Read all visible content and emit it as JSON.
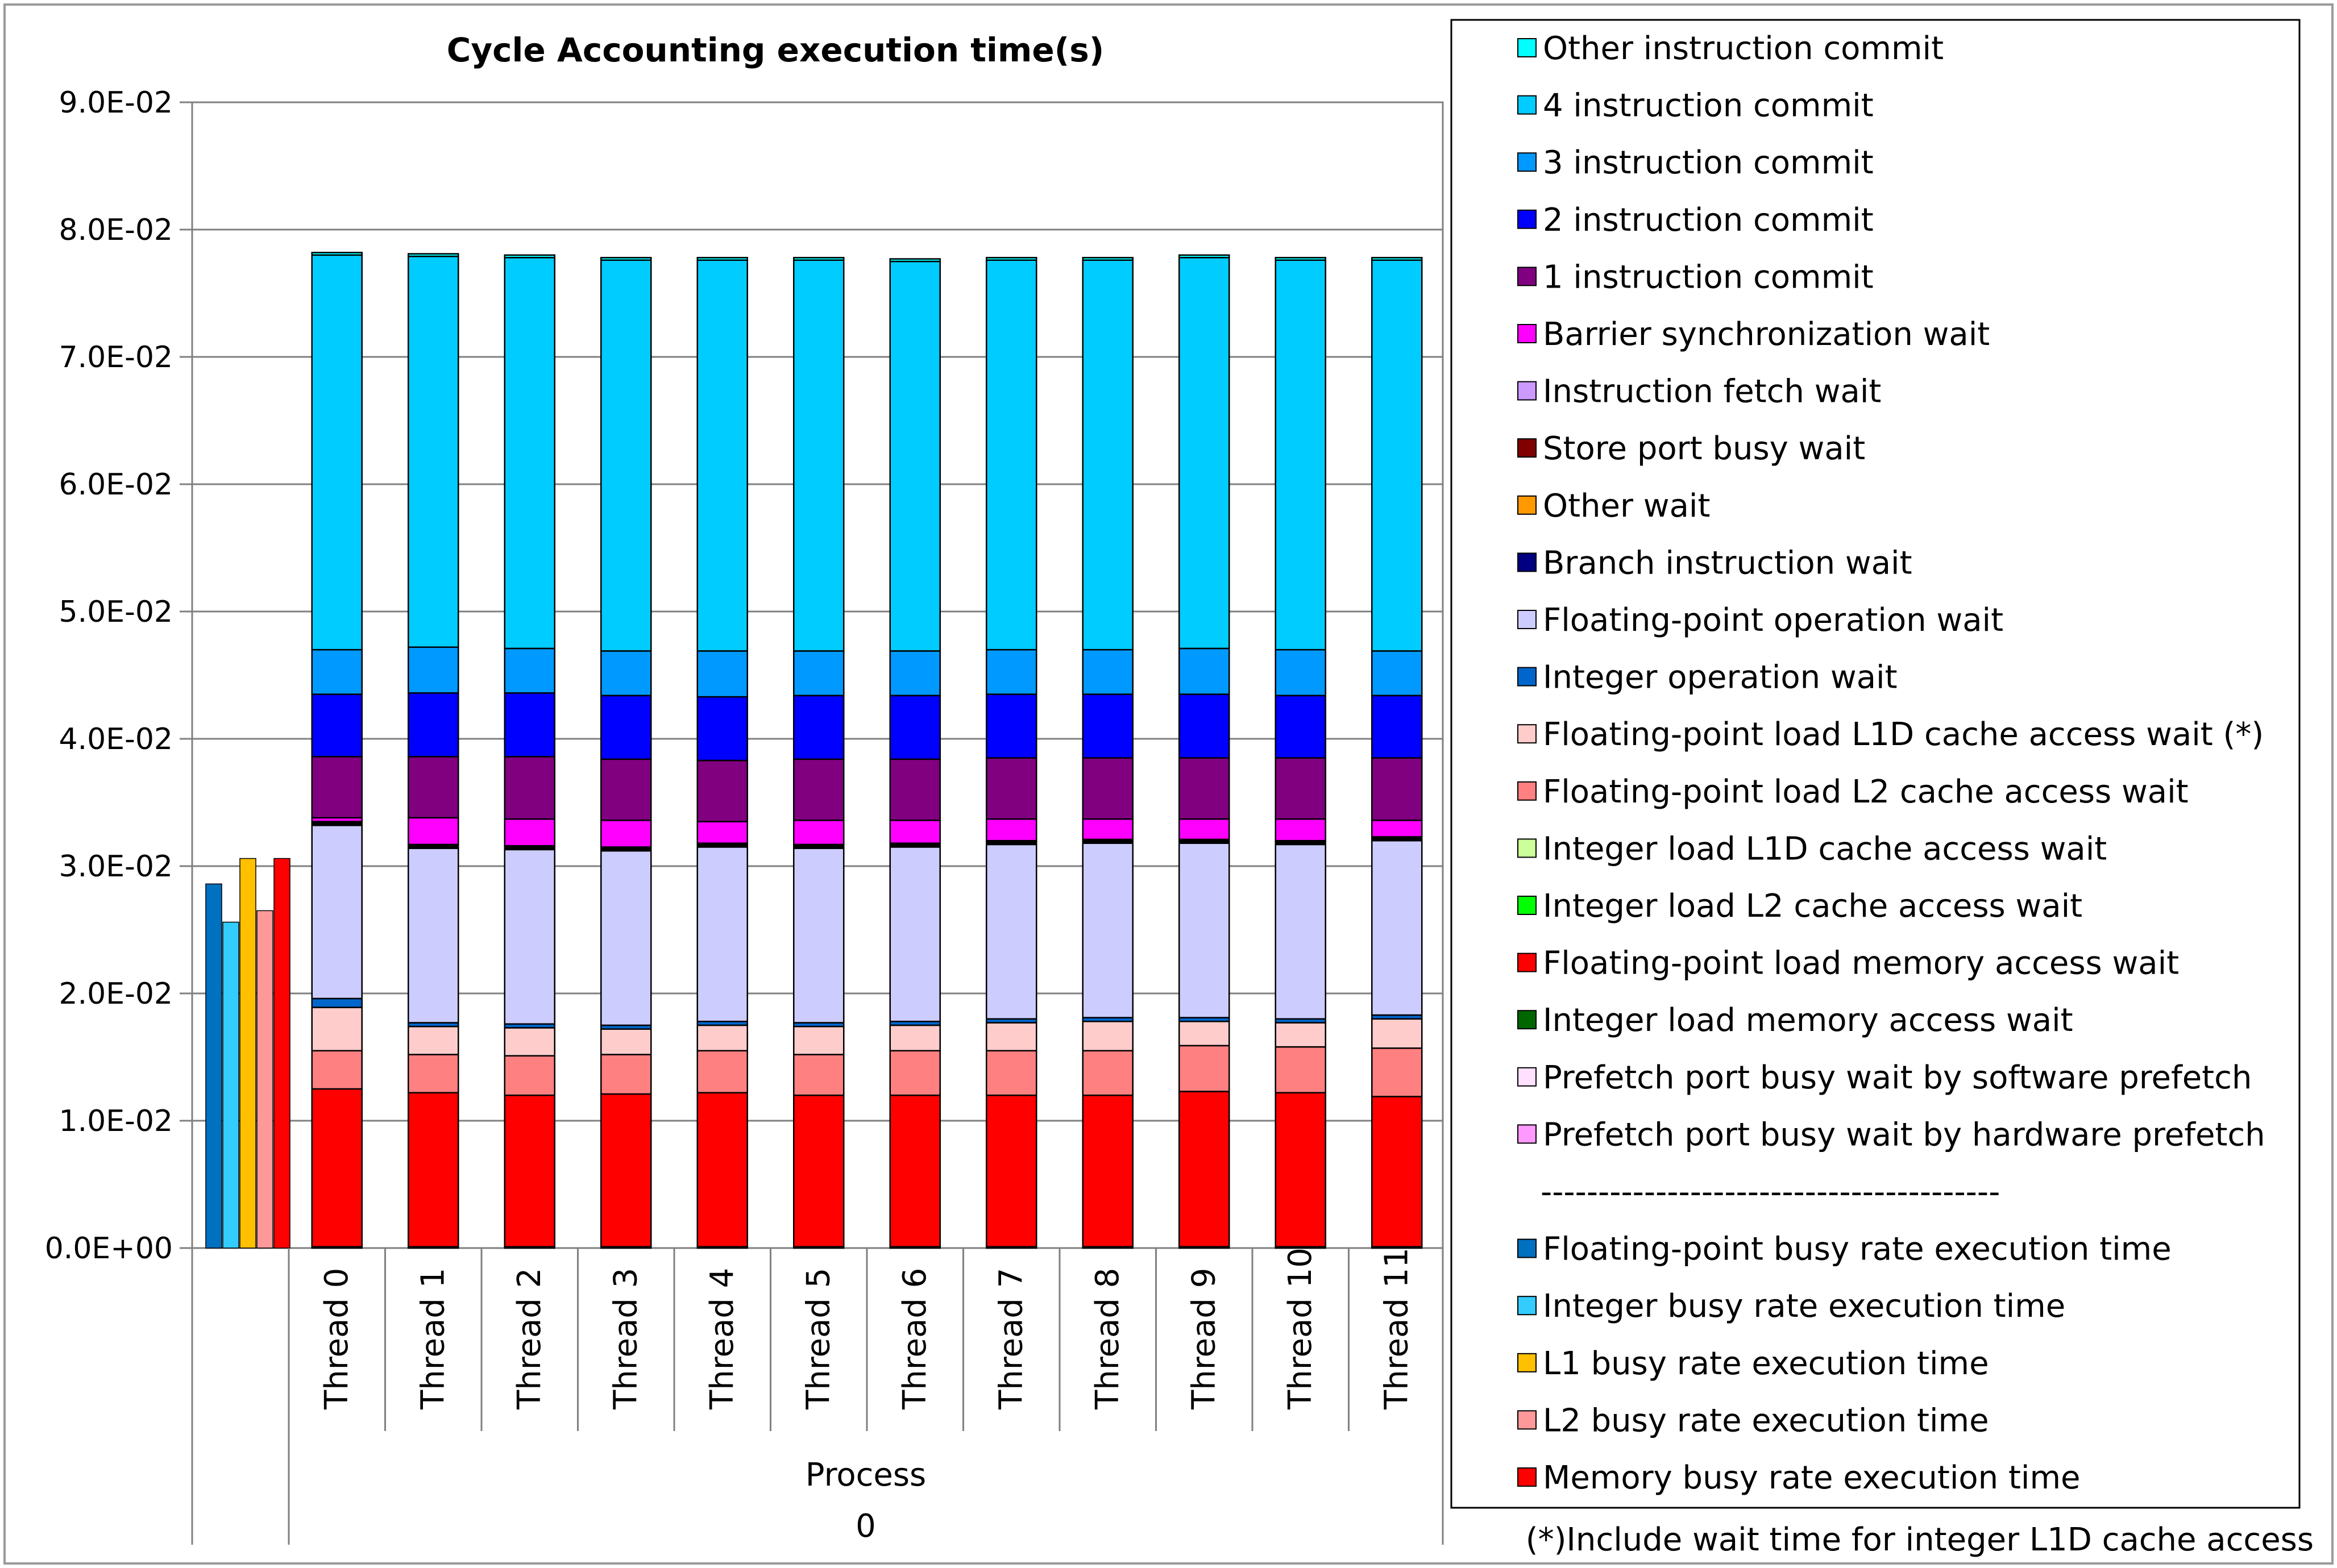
{
  "chart_data": {
    "type": "bar",
    "stacked": true,
    "title": "Cycle Accounting execution time(s)",
    "ylim": [
      0,
      0.09
    ],
    "yticks": [
      "0.0E+00",
      "1.0E-02",
      "2.0E-02",
      "3.0E-02",
      "4.0E-02",
      "5.0E-02",
      "6.0E-02",
      "7.0E-02",
      "8.0E-02",
      "9.0E-02"
    ],
    "grid": "horizontal",
    "legend_position": "right",
    "categories": [
      "Thread 0",
      "Thread 1",
      "Thread 2",
      "Thread 3",
      "Thread 4",
      "Thread 5",
      "Thread 6",
      "Thread 7",
      "Thread 8",
      "Thread 9",
      "Thread 10",
      "Thread 11"
    ],
    "group_labels": [
      "Process",
      "0"
    ],
    "footnote": "(*)Include wait time for integer L1D cache access",
    "legend_separator": "----------------------------------------",
    "series": [
      {
        "name": "Other instruction commit",
        "color": "#00FFFF",
        "values": [
          0.0002,
          0.0002,
          0.0002,
          0.0002,
          0.0002,
          0.0002,
          0.0002,
          0.0002,
          0.0002,
          0.0002,
          0.0002,
          0.0002
        ]
      },
      {
        "name": "4 instruction commit",
        "color": "#00CCFF",
        "values": [
          0.031,
          0.0307,
          0.0307,
          0.0307,
          0.0307,
          0.0307,
          0.0306,
          0.0306,
          0.0306,
          0.0307,
          0.0306,
          0.0307
        ]
      },
      {
        "name": "3 instruction commit",
        "color": "#0099FF",
        "values": [
          0.0035,
          0.0036,
          0.0035,
          0.0035,
          0.0036,
          0.0035,
          0.0035,
          0.0035,
          0.0035,
          0.0036,
          0.0036,
          0.0035
        ]
      },
      {
        "name": "2 instruction commit",
        "color": "#0000FF",
        "values": [
          0.0049,
          0.005,
          0.005,
          0.005,
          0.005,
          0.005,
          0.005,
          0.005,
          0.005,
          0.005,
          0.0049,
          0.0049
        ]
      },
      {
        "name": "1 instruction commit",
        "color": "#800080",
        "values": [
          0.0048,
          0.0048,
          0.0049,
          0.0048,
          0.0048,
          0.0048,
          0.0048,
          0.0048,
          0.0048,
          0.0048,
          0.0048,
          0.0049
        ]
      },
      {
        "name": "Barrier synchronization wait",
        "color": "#FF00FF",
        "values": [
          0.0003,
          0.0021,
          0.0021,
          0.0021,
          0.0017,
          0.0019,
          0.0018,
          0.0017,
          0.0016,
          0.0016,
          0.0017,
          0.0013
        ]
      },
      {
        "name": "Instruction fetch wait",
        "color": "#CC99FF",
        "values": [
          0.0001,
          0.0001,
          0.0001,
          0.0001,
          0.0001,
          0.0001,
          0.0001,
          0.0001,
          0.0001,
          0.0001,
          0.0001,
          0.0001
        ]
      },
      {
        "name": "Store port busy wait",
        "color": "#800000",
        "values": [
          0.0001,
          0.0001,
          0.0001,
          0.0001,
          0.0001,
          0.0001,
          0.0001,
          0.0001,
          0.0001,
          0.0001,
          0.0001,
          0.0001
        ]
      },
      {
        "name": "Other wait",
        "color": "#FF9900",
        "values": [
          0,
          0,
          0,
          0,
          0,
          0,
          0,
          0,
          0,
          0,
          0,
          0
        ]
      },
      {
        "name": "Branch instruction wait",
        "color": "#000080",
        "values": [
          0.0001,
          0.0001,
          0.0001,
          0.0001,
          0.0001,
          0.0001,
          0.0001,
          0.0001,
          0.0001,
          0.0001,
          0.0001,
          0.0001
        ]
      },
      {
        "name": "Floating-point operation wait",
        "color": "#CCCCFF",
        "values": [
          0.0136,
          0.0137,
          0.0137,
          0.0137,
          0.0137,
          0.0137,
          0.0137,
          0.0137,
          0.0137,
          0.0137,
          0.0137,
          0.0137
        ]
      },
      {
        "name": "Integer operation wait",
        "color": "#0066CC",
        "values": [
          0.0007,
          0.0003,
          0.0003,
          0.0003,
          0.0003,
          0.0003,
          0.0003,
          0.0003,
          0.0003,
          0.0003,
          0.0003,
          0.0003
        ]
      },
      {
        "name": "Floating-point load L1D cache access wait (*)",
        "color": "#FFCCCC",
        "values": [
          0.0034,
          0.0022,
          0.0022,
          0.002,
          0.002,
          0.0022,
          0.002,
          0.0022,
          0.0023,
          0.0019,
          0.0019,
          0.0023
        ]
      },
      {
        "name": "Floating-point load L2 cache access wait",
        "color": "#FF8080",
        "values": [
          0.003,
          0.003,
          0.0031,
          0.0031,
          0.0033,
          0.0032,
          0.0035,
          0.0035,
          0.0035,
          0.0036,
          0.0036,
          0.0038
        ]
      },
      {
        "name": "Integer load L1D cache access wait",
        "color": "#CCFF99",
        "values": [
          0,
          0,
          0,
          0,
          0,
          0,
          0,
          0,
          0,
          0,
          0,
          0
        ]
      },
      {
        "name": "Integer load L2 cache access wait",
        "color": "#00FF00",
        "values": [
          0,
          0,
          0,
          0,
          0,
          0,
          0,
          0,
          0,
          0,
          0,
          0
        ]
      },
      {
        "name": "Floating-point load memory access wait",
        "color": "#FF0000",
        "values": [
          0.0124,
          0.0121,
          0.0119,
          0.012,
          0.0121,
          0.0119,
          0.0119,
          0.0119,
          0.0119,
          0.0122,
          0.0121,
          0.0118
        ]
      },
      {
        "name": "Integer load memory access wait",
        "color": "#006600",
        "values": [
          0,
          0,
          0,
          0,
          0,
          0,
          0,
          0,
          0,
          0,
          0,
          0
        ]
      },
      {
        "name": "Prefetch port busy wait by software prefetch",
        "color": "#FFE0FF",
        "values": [
          0,
          0,
          0,
          0,
          0,
          0,
          0,
          0,
          0,
          0,
          0,
          0
        ]
      },
      {
        "name": "Prefetch port busy wait by hardware prefetch",
        "color": "#FF99FF",
        "values": [
          0.0001,
          0.0001,
          0.0001,
          0.0001,
          0.0001,
          0.0001,
          0.0001,
          0.0001,
          0.0001,
          0.0001,
          0.0001,
          0.0001
        ]
      }
    ],
    "busy_rate_series": [
      {
        "name": "Floating-point busy rate execution time",
        "color": "#0070C0",
        "value": 0.0286
      },
      {
        "name": "Integer busy rate execution time",
        "color": "#33CCFF",
        "value": 0.0256
      },
      {
        "name": "L1 busy rate execution time",
        "color": "#FFC000",
        "value": 0.0306
      },
      {
        "name": "L2 busy rate execution time",
        "color": "#FF9999",
        "value": 0.0265
      },
      {
        "name": "Memory busy rate execution time",
        "color": "#FF0000",
        "value": 0.0306
      }
    ]
  }
}
